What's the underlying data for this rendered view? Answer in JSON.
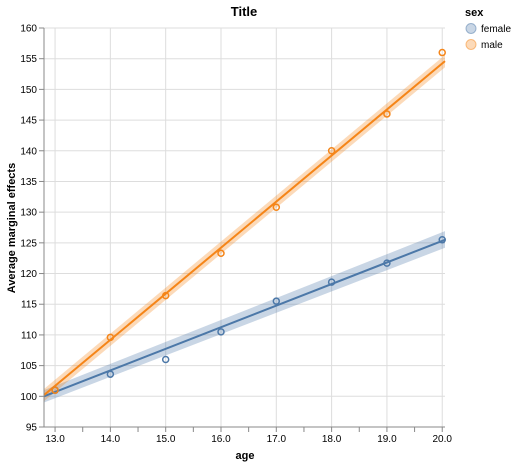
{
  "chart_data": {
    "type": "scatter",
    "title": "Title",
    "xlabel": "age",
    "ylabel": "Average marginal effects",
    "xlim": [
      12.8,
      20.05
    ],
    "ylim": [
      95,
      160
    ],
    "x_ticks": [
      13.0,
      14.0,
      15.0,
      16.0,
      17.0,
      18.0,
      19.0,
      20.0
    ],
    "x_tick_labels": [
      "13.0",
      "14.0",
      "15.0",
      "16.0",
      "17.0",
      "18.0",
      "19.0",
      "20.0"
    ],
    "y_ticks": [
      95,
      100,
      105,
      110,
      115,
      120,
      125,
      130,
      135,
      140,
      145,
      150,
      155,
      160
    ],
    "y_tick_labels": [
      "95",
      "100",
      "105",
      "110",
      "115",
      "120",
      "125",
      "130",
      "135",
      "140",
      "145",
      "150",
      "155",
      "160"
    ],
    "legend_title": "sex",
    "legend_position": "top-right",
    "grid": true,
    "series": [
      {
        "name": "female",
        "color": "#4c78a8",
        "x": [
          13,
          14,
          15,
          16,
          17,
          18,
          19,
          20
        ],
        "y": [
          101.0,
          103.6,
          106.0,
          110.5,
          115.5,
          118.6,
          121.7,
          125.5
        ],
        "fit": {
          "x": [
            12.8,
            20.05
          ],
          "y": [
            100.0,
            125.5
          ]
        },
        "band": {
          "x": [
            12.8,
            20.05
          ],
          "lower": [
            99.0,
            124.2
          ],
          "upper": [
            101.0,
            126.9
          ]
        }
      },
      {
        "name": "male",
        "color": "#f58518",
        "x": [
          13,
          14,
          15,
          16,
          17,
          18,
          19,
          20
        ],
        "y": [
          101.0,
          109.6,
          116.4,
          123.3,
          130.8,
          140.0,
          146.0,
          156.0
        ],
        "fit": {
          "x": [
            12.8,
            20.05
          ],
          "y": [
            100.2,
            154.6
          ]
        },
        "band": {
          "x": [
            12.8,
            20.05
          ],
          "lower": [
            99.2,
            153.6
          ],
          "upper": [
            101.2,
            155.6
          ]
        }
      }
    ]
  }
}
